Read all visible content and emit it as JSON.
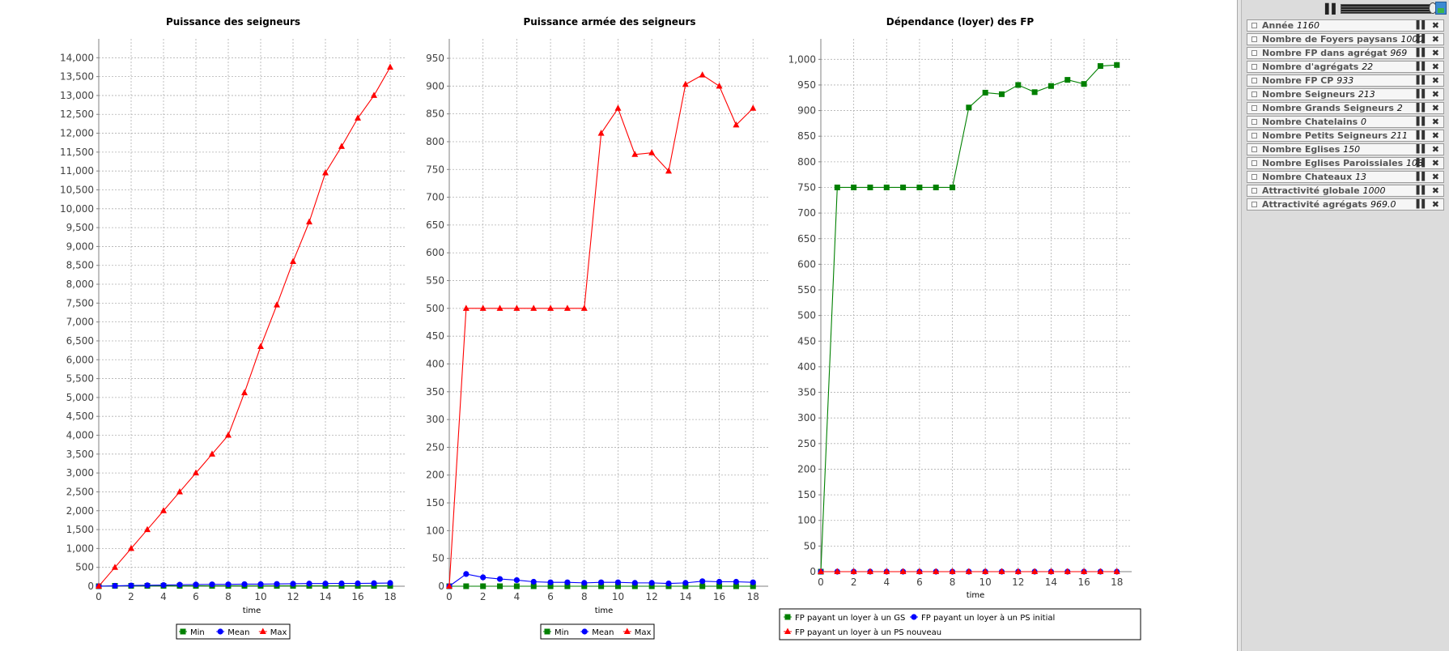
{
  "colors": {
    "min": "#008000",
    "mean": "#0000ff",
    "max": "#ff0000",
    "grid": "#b0b0b0",
    "axis": "#808080"
  },
  "chart_data": [
    {
      "type": "line",
      "title": "Puissance des seigneurs",
      "xlabel": "time",
      "ylabel": "",
      "x": [
        0,
        1,
        2,
        3,
        4,
        5,
        6,
        7,
        8,
        9,
        10,
        11,
        12,
        13,
        14,
        15,
        16,
        17,
        18
      ],
      "xlim": [
        0,
        18.9
      ],
      "ylim": [
        0,
        14500
      ],
      "xticks": [
        "0",
        "2",
        "4",
        "6",
        "8",
        "10",
        "12",
        "14",
        "16",
        "18"
      ],
      "yticks": [
        "0",
        "500",
        "1,000",
        "1,500",
        "2,000",
        "2,500",
        "3,000",
        "3,500",
        "4,000",
        "4,500",
        "5,000",
        "5,500",
        "6,000",
        "6,500",
        "7,000",
        "7,500",
        "8,000",
        "8,500",
        "9,000",
        "9,500",
        "10,000",
        "10,500",
        "11,000",
        "11,500",
        "12,000",
        "12,500",
        "13,000",
        "13,500",
        "14,000"
      ],
      "grid": true,
      "legend_position": "bottom",
      "series": [
        {
          "name": "Min",
          "marker": "square",
          "color": "#008000",
          "values": [
            0,
            10,
            10,
            10,
            10,
            10,
            10,
            10,
            10,
            10,
            10,
            10,
            10,
            10,
            10,
            10,
            10,
            10,
            10
          ]
        },
        {
          "name": "Mean",
          "marker": "circle",
          "color": "#0000ff",
          "values": [
            0,
            10,
            20,
            25,
            30,
            40,
            45,
            50,
            50,
            55,
            55,
            60,
            65,
            70,
            70,
            75,
            75,
            80,
            85
          ]
        },
        {
          "name": "Max",
          "marker": "triangle",
          "color": "#ff0000",
          "values": [
            0,
            500,
            1000,
            1500,
            2000,
            2500,
            3000,
            3500,
            4000,
            5125,
            6350,
            7450,
            8600,
            9650,
            10950,
            11650,
            12400,
            13000,
            13750
          ]
        }
      ]
    },
    {
      "type": "line",
      "title": "Puissance armée des seigneurs",
      "xlabel": "time",
      "ylabel": "",
      "x": [
        0,
        1,
        2,
        3,
        4,
        5,
        6,
        7,
        8,
        9,
        10,
        11,
        12,
        13,
        14,
        15,
        16,
        17,
        18
      ],
      "xlim": [
        0,
        18.9
      ],
      "ylim": [
        0,
        985
      ],
      "xticks": [
        "0",
        "2",
        "4",
        "6",
        "8",
        "10",
        "12",
        "14",
        "16",
        "18"
      ],
      "yticks": [
        "0",
        "50",
        "100",
        "150",
        "200",
        "250",
        "300",
        "350",
        "400",
        "450",
        "500",
        "550",
        "600",
        "650",
        "700",
        "750",
        "800",
        "850",
        "900",
        "950"
      ],
      "grid": true,
      "legend_position": "bottom",
      "series": [
        {
          "name": "Min",
          "marker": "square",
          "color": "#008000",
          "values": [
            0,
            0,
            0,
            0,
            0,
            0,
            0,
            0,
            0,
            0,
            0,
            0,
            0,
            0,
            0,
            0,
            0,
            0,
            0
          ]
        },
        {
          "name": "Mean",
          "marker": "circle",
          "color": "#0000ff",
          "values": [
            0,
            22,
            16,
            13,
            11,
            8,
            7,
            7,
            6,
            7,
            7,
            6,
            6,
            5,
            6,
            9,
            8,
            8,
            7
          ]
        },
        {
          "name": "Max",
          "marker": "triangle",
          "color": "#ff0000",
          "values": [
            0,
            500,
            500,
            500,
            500,
            500,
            500,
            500,
            500,
            815,
            860,
            777,
            780,
            747,
            903,
            920,
            900,
            830,
            860
          ]
        }
      ]
    },
    {
      "type": "line",
      "title": "Dépendance (loyer) des FP",
      "xlabel": "time",
      "ylabel": "",
      "x": [
        0,
        1,
        2,
        3,
        4,
        5,
        6,
        7,
        8,
        9,
        10,
        11,
        12,
        13,
        14,
        15,
        16,
        17,
        18
      ],
      "xlim": [
        0,
        18.9
      ],
      "ylim": [
        0,
        1040
      ],
      "xticks": [
        "0",
        "2",
        "4",
        "6",
        "8",
        "10",
        "12",
        "14",
        "16",
        "18"
      ],
      "yticks": [
        "0",
        "50",
        "100",
        "150",
        "200",
        "250",
        "300",
        "350",
        "400",
        "450",
        "500",
        "550",
        "600",
        "650",
        "700",
        "750",
        "800",
        "850",
        "900",
        "950",
        "1,000"
      ],
      "grid": true,
      "legend_position": "bottom",
      "series": [
        {
          "name": "FP payant un loyer à un GS",
          "marker": "square",
          "color": "#008000",
          "values": [
            0,
            750,
            750,
            750,
            750,
            750,
            750,
            750,
            750,
            906,
            935,
            932,
            950,
            936,
            948,
            960,
            952,
            987,
            989
          ]
        },
        {
          "name": "FP payant un loyer à un PS initial",
          "marker": "circle",
          "color": "#0000ff",
          "values": [
            0,
            0,
            0,
            0,
            0,
            0,
            0,
            0,
            0,
            0,
            0,
            0,
            0,
            0,
            0,
            0,
            0,
            0,
            0
          ]
        },
        {
          "name": "FP payant un loyer à un PS nouveau",
          "marker": "triangle",
          "color": "#ff0000",
          "values": [
            0,
            0,
            0,
            0,
            0,
            0,
            0,
            0,
            0,
            0,
            0,
            0,
            0,
            0,
            0,
            0,
            0,
            0,
            0
          ]
        }
      ]
    }
  ],
  "sidebar": {
    "pause_icon": "pause-icon",
    "monitors": [
      {
        "label": "Année",
        "value": "1160"
      },
      {
        "label": "Nombre de Foyers paysans",
        "value": "1000"
      },
      {
        "label": "Nombre FP dans agrégat",
        "value": "969"
      },
      {
        "label": "Nombre d'agrégats",
        "value": "22"
      },
      {
        "label": "Nombre FP CP",
        "value": "933"
      },
      {
        "label": "Nombre Seigneurs",
        "value": "213"
      },
      {
        "label": "Nombre Grands Seigneurs",
        "value": "2"
      },
      {
        "label": "Nombre Chatelains",
        "value": "0"
      },
      {
        "label": "Nombre Petits Seigneurs",
        "value": "211"
      },
      {
        "label": "Nombre Eglises",
        "value": "150"
      },
      {
        "label": "Nombre Eglises Paroissiales",
        "value": "108"
      },
      {
        "label": "Nombre Chateaux",
        "value": "13"
      },
      {
        "label": "Attractivité globale",
        "value": "1000"
      },
      {
        "label": "Attractivité agrégats",
        "value": "969.0"
      }
    ]
  }
}
